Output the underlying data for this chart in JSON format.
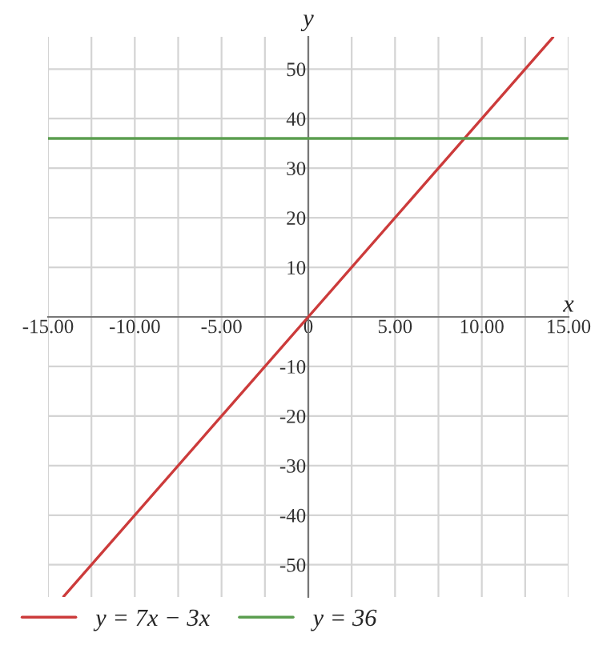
{
  "chart_data": {
    "type": "line",
    "xlabel": "x",
    "ylabel": "y",
    "series": [
      {
        "name": "y = 7x − 3x",
        "color": "#cc3b3b",
        "x": [
          -14.1,
          14.1
        ],
        "values": [
          -56.4,
          56.4
        ]
      },
      {
        "name": "y = 36",
        "color": "#5b9e4f",
        "x": [
          -15,
          15
        ],
        "values": [
          36,
          36
        ]
      }
    ],
    "xlim": [
      -15,
      15
    ],
    "ylim": [
      -56.5,
      56.5
    ],
    "xticks": [
      {
        "value": -15,
        "label": "-15.00"
      },
      {
        "value": -12.5,
        "label": null
      },
      {
        "value": -10,
        "label": "-10.00"
      },
      {
        "value": -7.5,
        "label": null
      },
      {
        "value": -5,
        "label": "-5.00"
      },
      {
        "value": -2.5,
        "label": null
      },
      {
        "value": 0,
        "label": "0"
      },
      {
        "value": 2.5,
        "label": null
      },
      {
        "value": 5,
        "label": "5.00"
      },
      {
        "value": 7.5,
        "label": null
      },
      {
        "value": 10,
        "label": "10.00"
      },
      {
        "value": 12.5,
        "label": null
      },
      {
        "value": 15,
        "label": "15.00"
      }
    ],
    "yticks": [
      -50,
      -40,
      -30,
      -20,
      -10,
      {
        "value": 0,
        "label": null
      },
      10,
      20,
      30,
      40,
      50
    ],
    "grid": true,
    "legend": "bottom",
    "marker": "none",
    "line_style": "solid"
  }
}
